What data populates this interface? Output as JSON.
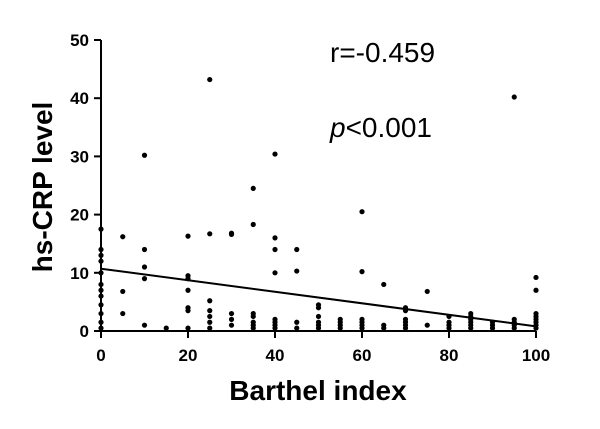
{
  "chart_data": {
    "type": "scatter",
    "title": "",
    "xlabel": "Barthel index",
    "ylabel": "hs-CRP level",
    "xlim": [
      0,
      100
    ],
    "ylim": [
      0,
      50
    ],
    "x_ticks": [
      "0",
      "20",
      "40",
      "60",
      "80",
      "100"
    ],
    "y_ticks": [
      "0",
      "10",
      "20",
      "30",
      "40",
      "50"
    ],
    "grid": false,
    "legend": "none",
    "annotations": {
      "r_text": "r=-0.459",
      "p_letter": "p",
      "p_rest": "<0.001"
    },
    "fit_line": {
      "x": [
        0,
        100
      ],
      "y": [
        10.7,
        0.8
      ]
    },
    "points": [
      [
        0,
        17.5
      ],
      [
        0,
        14.0
      ],
      [
        0,
        13.0
      ],
      [
        0,
        12.0
      ],
      [
        0,
        10.0
      ],
      [
        0,
        8.0
      ],
      [
        0,
        7.0
      ],
      [
        0,
        6.0
      ],
      [
        0,
        4.5
      ],
      [
        0,
        3.0
      ],
      [
        0,
        1.5
      ],
      [
        0,
        0.5
      ],
      [
        5,
        16.2
      ],
      [
        5,
        6.8
      ],
      [
        5,
        3.0
      ],
      [
        10,
        30.2
      ],
      [
        10,
        14.0
      ],
      [
        10,
        11.0
      ],
      [
        10,
        9.0
      ],
      [
        10,
        1.0
      ],
      [
        15,
        0.5
      ],
      [
        20,
        16.3
      ],
      [
        20,
        9.5
      ],
      [
        20,
        9.0
      ],
      [
        20,
        7.0
      ],
      [
        20,
        4.0
      ],
      [
        20,
        3.5
      ],
      [
        20,
        0.5
      ],
      [
        25,
        43.2
      ],
      [
        25,
        16.7
      ],
      [
        25,
        5.2
      ],
      [
        25,
        3.5
      ],
      [
        25,
        2.5
      ],
      [
        25,
        1.5
      ],
      [
        25,
        0.5
      ],
      [
        30,
        16.8
      ],
      [
        30,
        16.6
      ],
      [
        30,
        3.0
      ],
      [
        30,
        2.0
      ],
      [
        30,
        1.0
      ],
      [
        35,
        24.5
      ],
      [
        35,
        18.3
      ],
      [
        35,
        3.0
      ],
      [
        35,
        2.5
      ],
      [
        35,
        1.5
      ],
      [
        35,
        1.0
      ],
      [
        35,
        0.5
      ],
      [
        40,
        30.4
      ],
      [
        40,
        16.0
      ],
      [
        40,
        14.0
      ],
      [
        40,
        10.0
      ],
      [
        40,
        2.0
      ],
      [
        40,
        1.5
      ],
      [
        40,
        1.0
      ],
      [
        40,
        0.5
      ],
      [
        45,
        14.0
      ],
      [
        45,
        10.3
      ],
      [
        45,
        1.5
      ],
      [
        45,
        0.5
      ],
      [
        50,
        4.5
      ],
      [
        50,
        4.0
      ],
      [
        50,
        2.5
      ],
      [
        50,
        1.5
      ],
      [
        50,
        1.0
      ],
      [
        50,
        0.5
      ],
      [
        55,
        2.0
      ],
      [
        55,
        1.5
      ],
      [
        55,
        1.0
      ],
      [
        55,
        0.5
      ],
      [
        60,
        20.5
      ],
      [
        60,
        10.2
      ],
      [
        60,
        2.0
      ],
      [
        60,
        1.5
      ],
      [
        60,
        1.0
      ],
      [
        60,
        0.5
      ],
      [
        65,
        8.0
      ],
      [
        65,
        1.0
      ],
      [
        65,
        0.5
      ],
      [
        70,
        4.0
      ],
      [
        70,
        3.5
      ],
      [
        70,
        2.0
      ],
      [
        70,
        1.5
      ],
      [
        70,
        1.0
      ],
      [
        70,
        0.5
      ],
      [
        75,
        6.8
      ],
      [
        75,
        1.0
      ],
      [
        80,
        2.5
      ],
      [
        80,
        1.5
      ],
      [
        80,
        1.0
      ],
      [
        80,
        0.5
      ],
      [
        85,
        3.0
      ],
      [
        85,
        2.5
      ],
      [
        85,
        2.0
      ],
      [
        85,
        1.5
      ],
      [
        85,
        1.0
      ],
      [
        85,
        0.5
      ],
      [
        90,
        1.5
      ],
      [
        90,
        1.0
      ],
      [
        90,
        0.5
      ],
      [
        95,
        40.2
      ],
      [
        95,
        2.0
      ],
      [
        95,
        1.5
      ],
      [
        95,
        1.0
      ],
      [
        95,
        0.5
      ],
      [
        100,
        9.2
      ],
      [
        100,
        7.0
      ],
      [
        100,
        3.0
      ],
      [
        100,
        2.5
      ],
      [
        100,
        2.0
      ],
      [
        100,
        1.5
      ],
      [
        100,
        1.0
      ],
      [
        100,
        0.5
      ]
    ]
  }
}
